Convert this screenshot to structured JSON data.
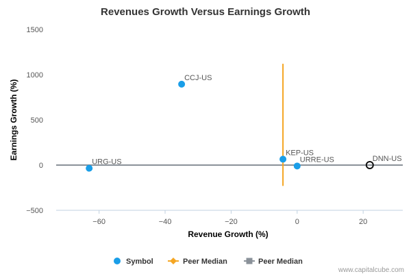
{
  "chart_data": {
    "type": "scatter",
    "title": "Revenues Growth Versus Earnings Growth",
    "xlabel": "Revenue Growth (%)",
    "ylabel": "Earnings Growth (%)",
    "xlim": [
      -73,
      32
    ],
    "ylim": [
      -500,
      1500
    ],
    "x_ticks": [
      -60,
      -40,
      -20,
      0,
      20
    ],
    "y_ticks": [
      -500,
      0,
      500,
      1000,
      1500
    ],
    "grid": false,
    "legend_position": "bottom",
    "series": [
      {
        "name": "Symbol",
        "color": "#1a9ee8",
        "points": [
          {
            "label": "CCJ-US",
            "x": -35,
            "y": 895
          },
          {
            "label": "URG-US",
            "x": -63,
            "y": -35
          },
          {
            "label": "KEP-US",
            "x": -4.3,
            "y": 65
          },
          {
            "label": "URRE-US",
            "x": 0,
            "y": -10
          }
        ]
      }
    ],
    "highlight_point": {
      "label": "DNN-US",
      "x": 22,
      "y": 0,
      "color": "#111111"
    },
    "peer_median_x": {
      "name": "Peer Median",
      "value": -4.3,
      "y_range": [
        -230,
        1120
      ],
      "color": "#f5a623"
    },
    "peer_median_y": {
      "name": "Peer Median",
      "value": 0,
      "color": "#8a9199"
    }
  },
  "legend": {
    "symbol": "Symbol",
    "peer_median_x": "Peer Median",
    "peer_median_y": "Peer Median"
  },
  "credit": "www.capitalcube.com"
}
